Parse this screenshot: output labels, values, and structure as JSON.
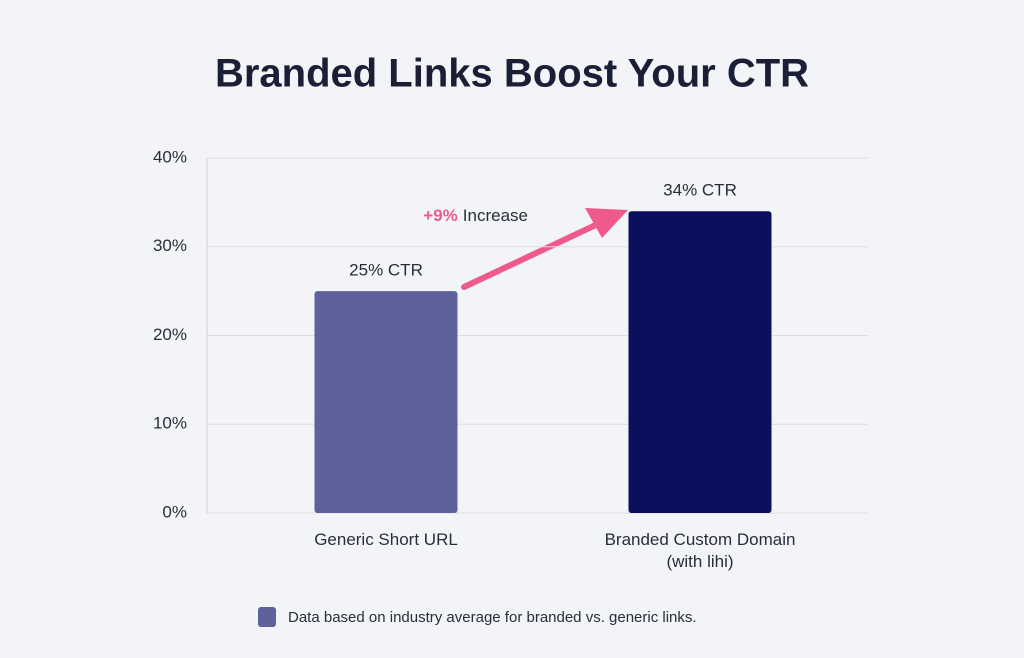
{
  "chart_data": {
    "type": "bar",
    "title": "Branded Links Boost Your CTR",
    "categories": [
      "Generic Short URL",
      "Branded Custom Domain (with lihi)"
    ],
    "values": [
      25,
      34
    ],
    "value_labels": [
      "25% CTR",
      "34% CTR"
    ],
    "colors": [
      "#5d619c",
      "#0c0e5e"
    ],
    "ylim": [
      0,
      40
    ],
    "yticks": [
      {
        "value": 0,
        "label": "0%"
      },
      {
        "value": 10,
        "label": "10%"
      },
      {
        "value": 20,
        "label": "20%"
      },
      {
        "value": 30,
        "label": "30%"
      },
      {
        "value": 40,
        "label": "40%"
      }
    ],
    "grid": true,
    "annotation": {
      "highlight": "+9%",
      "text": "Increase",
      "color": "#ef5a8c"
    },
    "footnote": {
      "text": "Data based on industry average for branded vs. generic links.",
      "color": "#5d619c"
    }
  }
}
